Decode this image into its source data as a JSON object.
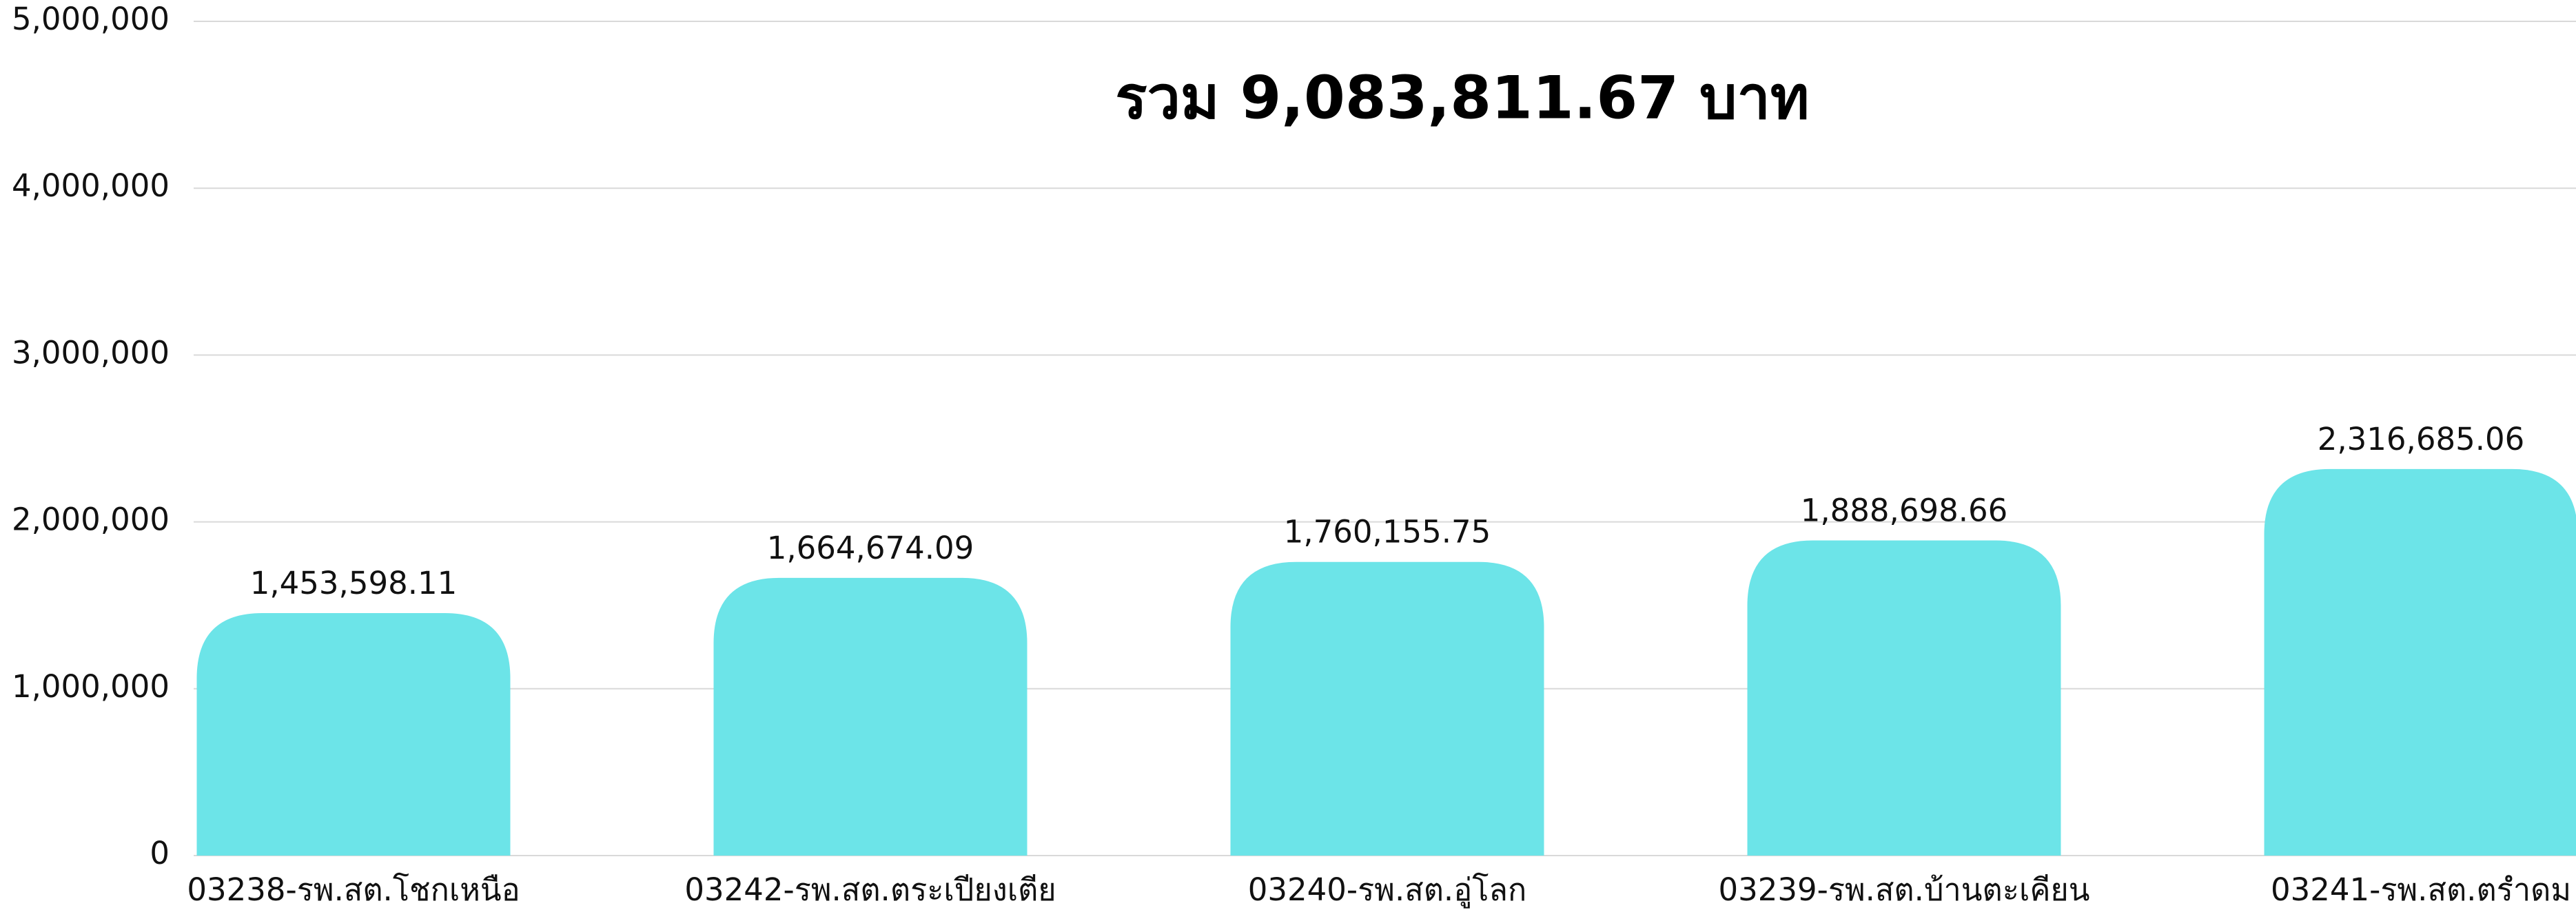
{
  "chart_data": {
    "type": "bar",
    "title": "รวม 9,083,811.67 บาท",
    "categories": [
      "03238-รพ.สต.โชกเหนือ",
      "03242-รพ.สต.ตระเปียงเตีย",
      "03240-รพ.สต.อู่โลก",
      "03239-รพ.สต.บ้านตะเคียน",
      "03241-รพ.สต.ตรำดม"
    ],
    "values": [
      1453598.11,
      1664674.09,
      1760155.75,
      1888698.66,
      2316685.06
    ],
    "value_labels": [
      "1,453,598.11",
      "1,664,674.09",
      "1,760,155.75",
      "1,888,698.66",
      "2,316,685.06"
    ],
    "color": "#6ce4e8",
    "ylim": [
      0,
      5000000
    ],
    "yticks": [
      0,
      {
        "value": 1000000,
        "label": "1,000,000"
      },
      {
        "value": 2000000,
        "label": "2,000,000"
      },
      {
        "value": 3000000,
        "label": "3,000,000"
      },
      {
        "value": 4000000,
        "label": "4,000,000"
      },
      {
        "value": 5000000,
        "label": "5,000,000"
      }
    ],
    "grid": true
  }
}
